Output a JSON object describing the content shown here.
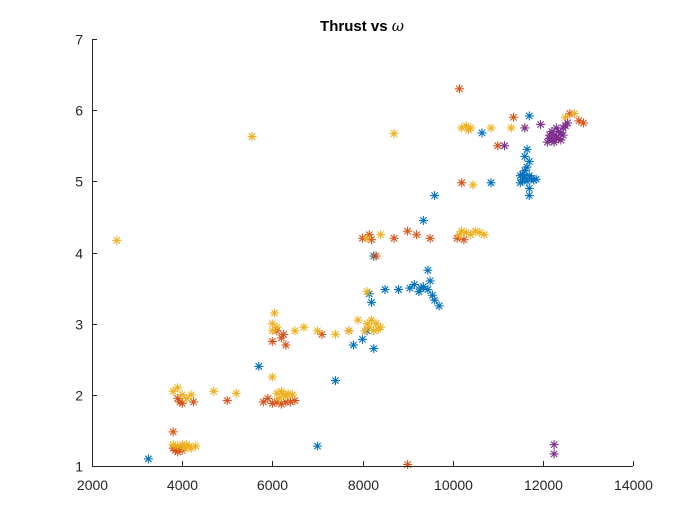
{
  "chart_data": {
    "type": "scatter",
    "title": "Thrust vs ",
    "title_symbol": "ω",
    "xlabel": "",
    "ylabel": "",
    "xlim": [
      2000,
      14000
    ],
    "ylim": [
      1,
      7
    ],
    "x_ticks": [
      2000,
      4000,
      6000,
      8000,
      10000,
      12000,
      14000
    ],
    "x_tick_labels": [
      "2000",
      "4000",
      "6000",
      "8000",
      "10000",
      "12000",
      "14000"
    ],
    "y_ticks": [
      1,
      2,
      3,
      4,
      5,
      6,
      7
    ],
    "y_tick_labels": [
      "1",
      "2",
      "3",
      "4",
      "5",
      "6",
      "7"
    ],
    "grid": false,
    "marker": "asterisk",
    "series": [
      {
        "color": "#0072BD",
        "points": [
          [
            3250,
            1.1
          ],
          [
            5700,
            2.4
          ],
          [
            7000,
            1.28
          ],
          [
            7400,
            2.2
          ],
          [
            7800,
            2.7
          ],
          [
            8000,
            2.78
          ],
          [
            8100,
            2.9
          ],
          [
            8250,
            2.65
          ],
          [
            8200,
            3.3
          ],
          [
            8150,
            3.42
          ],
          [
            8500,
            3.48
          ],
          [
            8800,
            3.48
          ],
          [
            9050,
            3.5
          ],
          [
            9150,
            3.55
          ],
          [
            9250,
            3.45
          ],
          [
            9300,
            3.5
          ],
          [
            9350,
            3.52
          ],
          [
            9450,
            3.48
          ],
          [
            9500,
            3.6
          ],
          [
            9450,
            3.75
          ],
          [
            9550,
            3.4
          ],
          [
            9600,
            3.33
          ],
          [
            9700,
            3.25
          ],
          [
            8250,
            3.95
          ],
          [
            9350,
            4.45
          ],
          [
            9600,
            4.8
          ],
          [
            10850,
            4.98
          ],
          [
            10650,
            5.68
          ],
          [
            11700,
            5.92
          ],
          [
            11500,
            5.08
          ],
          [
            11550,
            5.02
          ],
          [
            11600,
            5.06
          ],
          [
            11650,
            5.0
          ],
          [
            11700,
            5.08
          ],
          [
            11750,
            5.04
          ],
          [
            11800,
            5.02
          ],
          [
            11600,
            5.15
          ],
          [
            11650,
            5.2
          ],
          [
            11700,
            5.28
          ],
          [
            11600,
            5.35
          ],
          [
            11650,
            5.45
          ],
          [
            11700,
            4.9
          ],
          [
            11700,
            4.8
          ],
          [
            11850,
            5.03
          ],
          [
            11550,
            5.1
          ],
          [
            11500,
            4.98
          ]
        ]
      },
      {
        "color": "#D95319",
        "points": [
          [
            3800,
            1.48
          ],
          [
            3800,
            1.25
          ],
          [
            3850,
            1.22
          ],
          [
            3900,
            1.2
          ],
          [
            3950,
            1.25
          ],
          [
            4000,
            1.22
          ],
          [
            3900,
            1.95
          ],
          [
            3950,
            1.9
          ],
          [
            4000,
            1.88
          ],
          [
            4250,
            1.9
          ],
          [
            5000,
            1.92
          ],
          [
            5800,
            1.9
          ],
          [
            5900,
            1.95
          ],
          [
            6000,
            1.88
          ],
          [
            6100,
            1.9
          ],
          [
            6200,
            1.87
          ],
          [
            6300,
            1.9
          ],
          [
            6400,
            1.9
          ],
          [
            6500,
            1.92
          ],
          [
            6000,
            2.75
          ],
          [
            6100,
            2.9
          ],
          [
            6200,
            2.8
          ],
          [
            6300,
            2.7
          ],
          [
            6250,
            2.85
          ],
          [
            7100,
            2.85
          ],
          [
            7700,
            2.9
          ],
          [
            8000,
            4.2
          ],
          [
            8150,
            4.25
          ],
          [
            8200,
            4.18
          ],
          [
            8300,
            3.95
          ],
          [
            8700,
            4.2
          ],
          [
            9000,
            4.3
          ],
          [
            9200,
            4.25
          ],
          [
            9500,
            4.2
          ],
          [
            10100,
            4.2
          ],
          [
            10250,
            4.18
          ],
          [
            10200,
            4.98
          ],
          [
            10150,
            6.3
          ],
          [
            11350,
            5.9
          ],
          [
            12300,
            5.6
          ],
          [
            12600,
            5.95
          ],
          [
            12800,
            5.85
          ],
          [
            12900,
            5.82
          ],
          [
            9000,
            1.02
          ],
          [
            11000,
            5.5
          ]
        ]
      },
      {
        "color": "#EDB120",
        "points": [
          [
            2550,
            4.17
          ],
          [
            3800,
            2.05
          ],
          [
            3900,
            2.1
          ],
          [
            4000,
            2.0
          ],
          [
            4100,
            1.95
          ],
          [
            4200,
            2.0
          ],
          [
            3800,
            1.3
          ],
          [
            3900,
            1.28
          ],
          [
            4000,
            1.3
          ],
          [
            4050,
            1.25
          ],
          [
            4100,
            1.3
          ],
          [
            4150,
            1.27
          ],
          [
            4200,
            1.25
          ],
          [
            4300,
            1.28
          ],
          [
            4700,
            2.05
          ],
          [
            5200,
            2.02
          ],
          [
            5550,
            5.63
          ],
          [
            6000,
            2.25
          ],
          [
            6000,
            2.9
          ],
          [
            6000,
            3.0
          ],
          [
            6050,
            3.15
          ],
          [
            6100,
            2.95
          ],
          [
            6100,
            2.02
          ],
          [
            6150,
            1.95
          ],
          [
            6200,
            2.05
          ],
          [
            6250,
            2.0
          ],
          [
            6300,
            1.98
          ],
          [
            6350,
            2.02
          ],
          [
            6450,
            2.0
          ],
          [
            6500,
            2.9
          ],
          [
            6700,
            2.95
          ],
          [
            7000,
            2.9
          ],
          [
            7400,
            2.85
          ],
          [
            7700,
            2.9
          ],
          [
            7900,
            3.05
          ],
          [
            8050,
            2.9
          ],
          [
            8100,
            3.0
          ],
          [
            8150,
            2.95
          ],
          [
            8200,
            3.05
          ],
          [
            8250,
            2.9
          ],
          [
            8300,
            3.0
          ],
          [
            8350,
            2.92
          ],
          [
            8400,
            2.95
          ],
          [
            8100,
            3.45
          ],
          [
            8100,
            4.2
          ],
          [
            8400,
            4.25
          ],
          [
            8700,
            5.67
          ],
          [
            10150,
            4.25
          ],
          [
            10200,
            4.3
          ],
          [
            10300,
            4.28
          ],
          [
            10400,
            4.25
          ],
          [
            10500,
            4.3
          ],
          [
            10600,
            4.28
          ],
          [
            10700,
            4.25
          ],
          [
            10200,
            5.75
          ],
          [
            10300,
            5.78
          ],
          [
            10350,
            5.72
          ],
          [
            10400,
            5.75
          ],
          [
            10450,
            4.95
          ],
          [
            10850,
            5.75
          ],
          [
            11300,
            5.75
          ],
          [
            11600,
            5.75
          ],
          [
            12500,
            5.9
          ],
          [
            12700,
            5.95
          ]
        ]
      },
      {
        "color": "#7E2F8E",
        "points": [
          [
            11150,
            5.5
          ],
          [
            11950,
            5.8
          ],
          [
            12100,
            5.55
          ],
          [
            12150,
            5.6
          ],
          [
            12200,
            5.58
          ],
          [
            12250,
            5.65
          ],
          [
            12300,
            5.62
          ],
          [
            12350,
            5.7
          ],
          [
            12400,
            5.68
          ],
          [
            12450,
            5.75
          ],
          [
            12500,
            5.78
          ],
          [
            12550,
            5.82
          ],
          [
            12200,
            5.7
          ],
          [
            12300,
            5.75
          ],
          [
            12150,
            5.65
          ],
          [
            12400,
            5.58
          ],
          [
            12350,
            5.6
          ],
          [
            12250,
            5.55
          ],
          [
            12450,
            5.65
          ],
          [
            11600,
            5.75
          ],
          [
            12250,
            1.3
          ],
          [
            12250,
            1.17
          ]
        ]
      }
    ]
  }
}
